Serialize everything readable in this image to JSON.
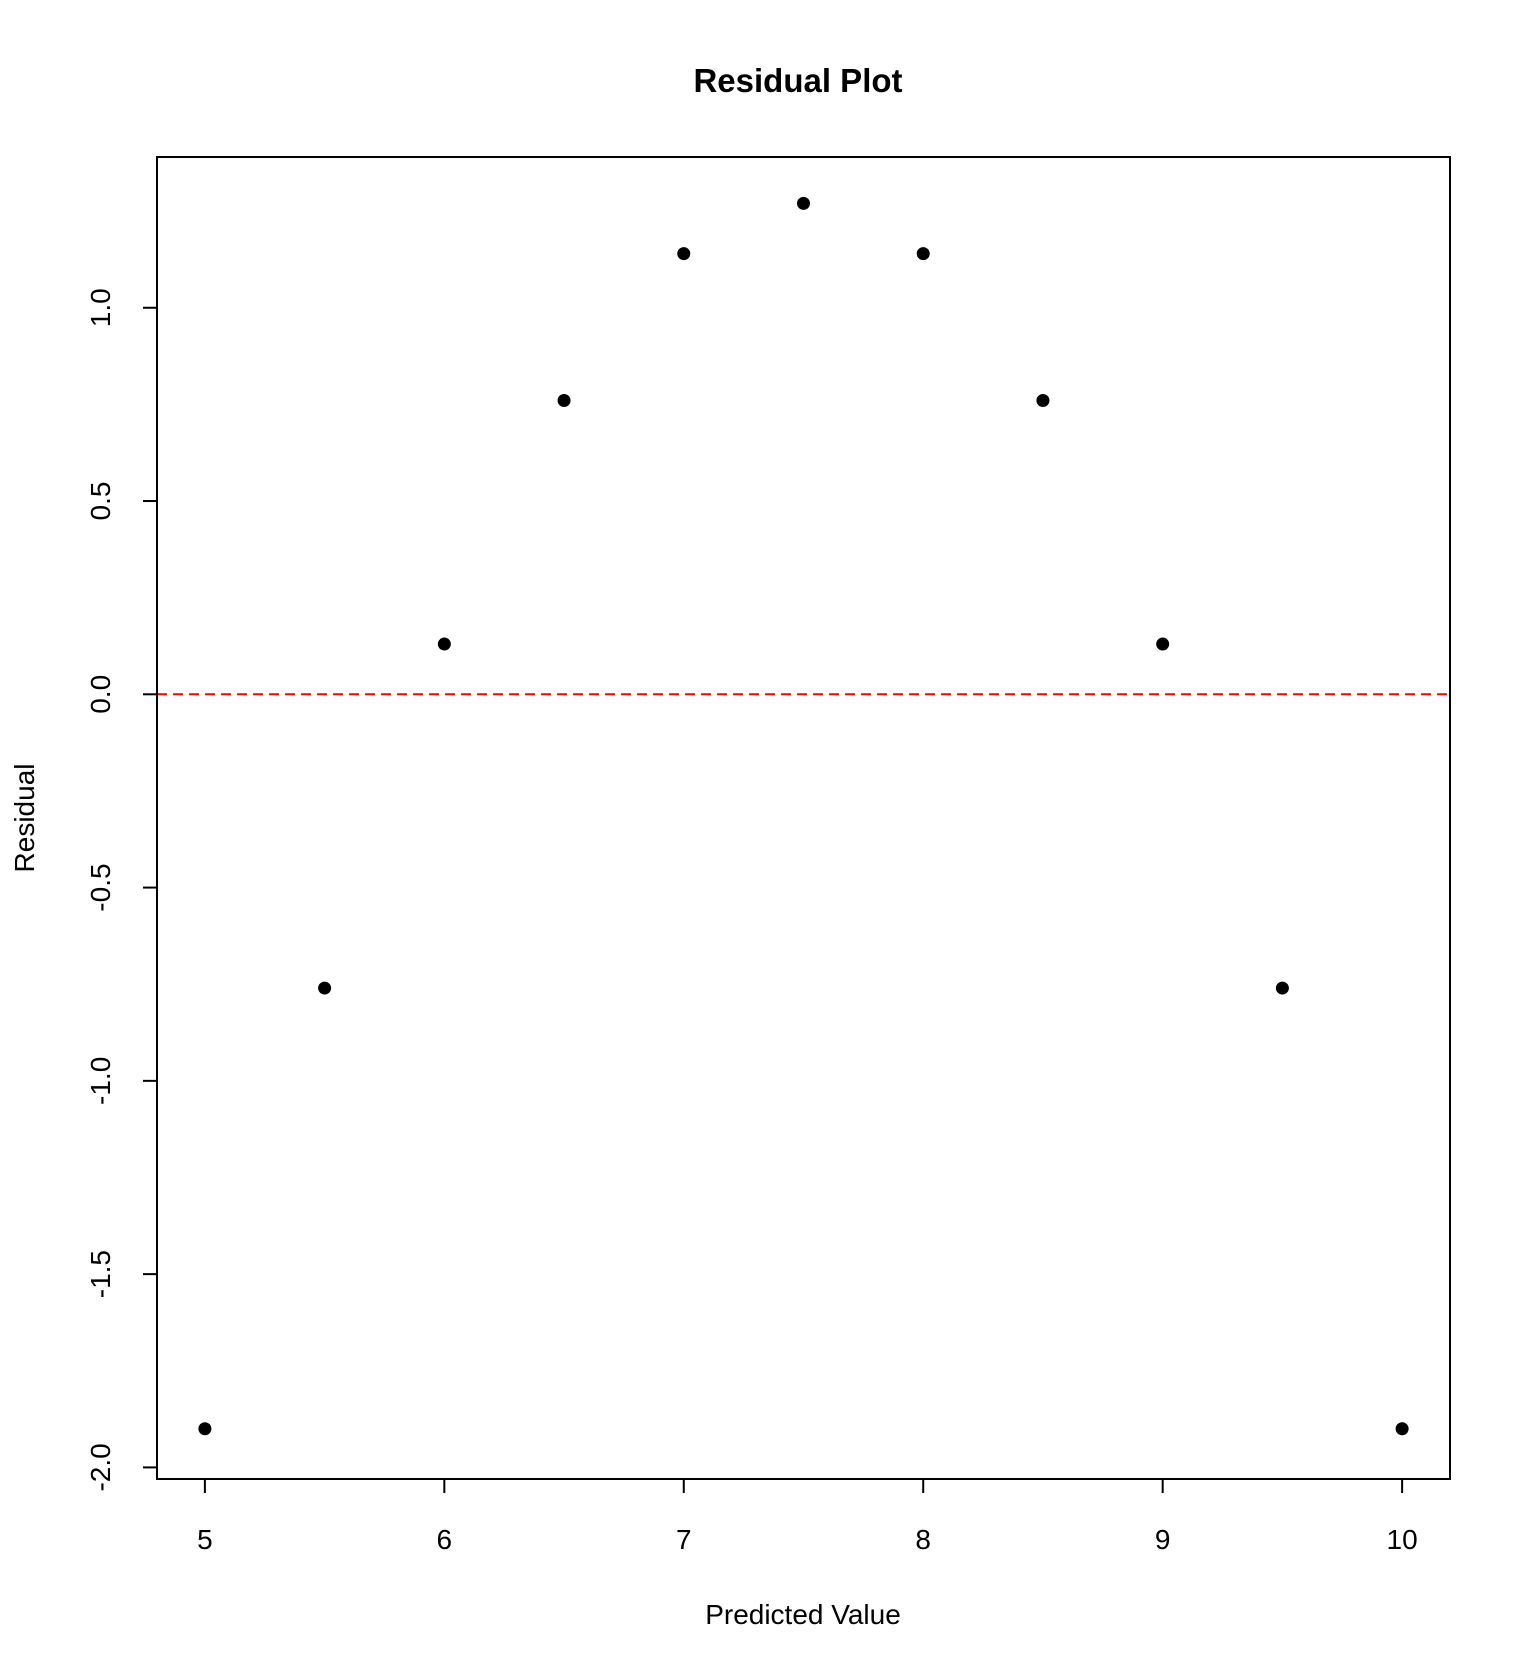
{
  "chart_data": {
    "type": "scatter",
    "title": "Residual Plot",
    "xlabel": "Predicted Value",
    "ylabel": "Residual",
    "xlim": [
      4.8,
      10.2
    ],
    "ylim": [
      -2.03,
      1.39
    ],
    "xticks": [
      {
        "value": 5,
        "label": "5"
      },
      {
        "value": 6,
        "label": "6"
      },
      {
        "value": 7,
        "label": "7"
      },
      {
        "value": 8,
        "label": "8"
      },
      {
        "value": 9,
        "label": "9"
      },
      {
        "value": 10,
        "label": "10"
      }
    ],
    "yticks": [
      {
        "value": -2.0,
        "label": "-2.0"
      },
      {
        "value": -1.5,
        "label": "-1.5"
      },
      {
        "value": -1.0,
        "label": "-1.0"
      },
      {
        "value": -0.5,
        "label": "-0.5"
      },
      {
        "value": 0.0,
        "label": "0.0"
      },
      {
        "value": 0.5,
        "label": "0.5"
      },
      {
        "value": 1.0,
        "label": "1.0"
      }
    ],
    "points": [
      {
        "x": 5.0,
        "y": -1.9
      },
      {
        "x": 5.5,
        "y": -0.76
      },
      {
        "x": 6.0,
        "y": 0.13
      },
      {
        "x": 6.5,
        "y": 0.76
      },
      {
        "x": 7.0,
        "y": 1.14
      },
      {
        "x": 7.5,
        "y": 1.27
      },
      {
        "x": 8.0,
        "y": 1.14
      },
      {
        "x": 8.5,
        "y": 0.76
      },
      {
        "x": 9.0,
        "y": 0.13
      },
      {
        "x": 9.5,
        "y": -0.76
      },
      {
        "x": 10.0,
        "y": -1.9
      }
    ],
    "reference_line": {
      "y": 0.0,
      "style": "dashed",
      "color": "#ff0000"
    },
    "point_color": "#000000",
    "grid": false,
    "legend": "none"
  }
}
